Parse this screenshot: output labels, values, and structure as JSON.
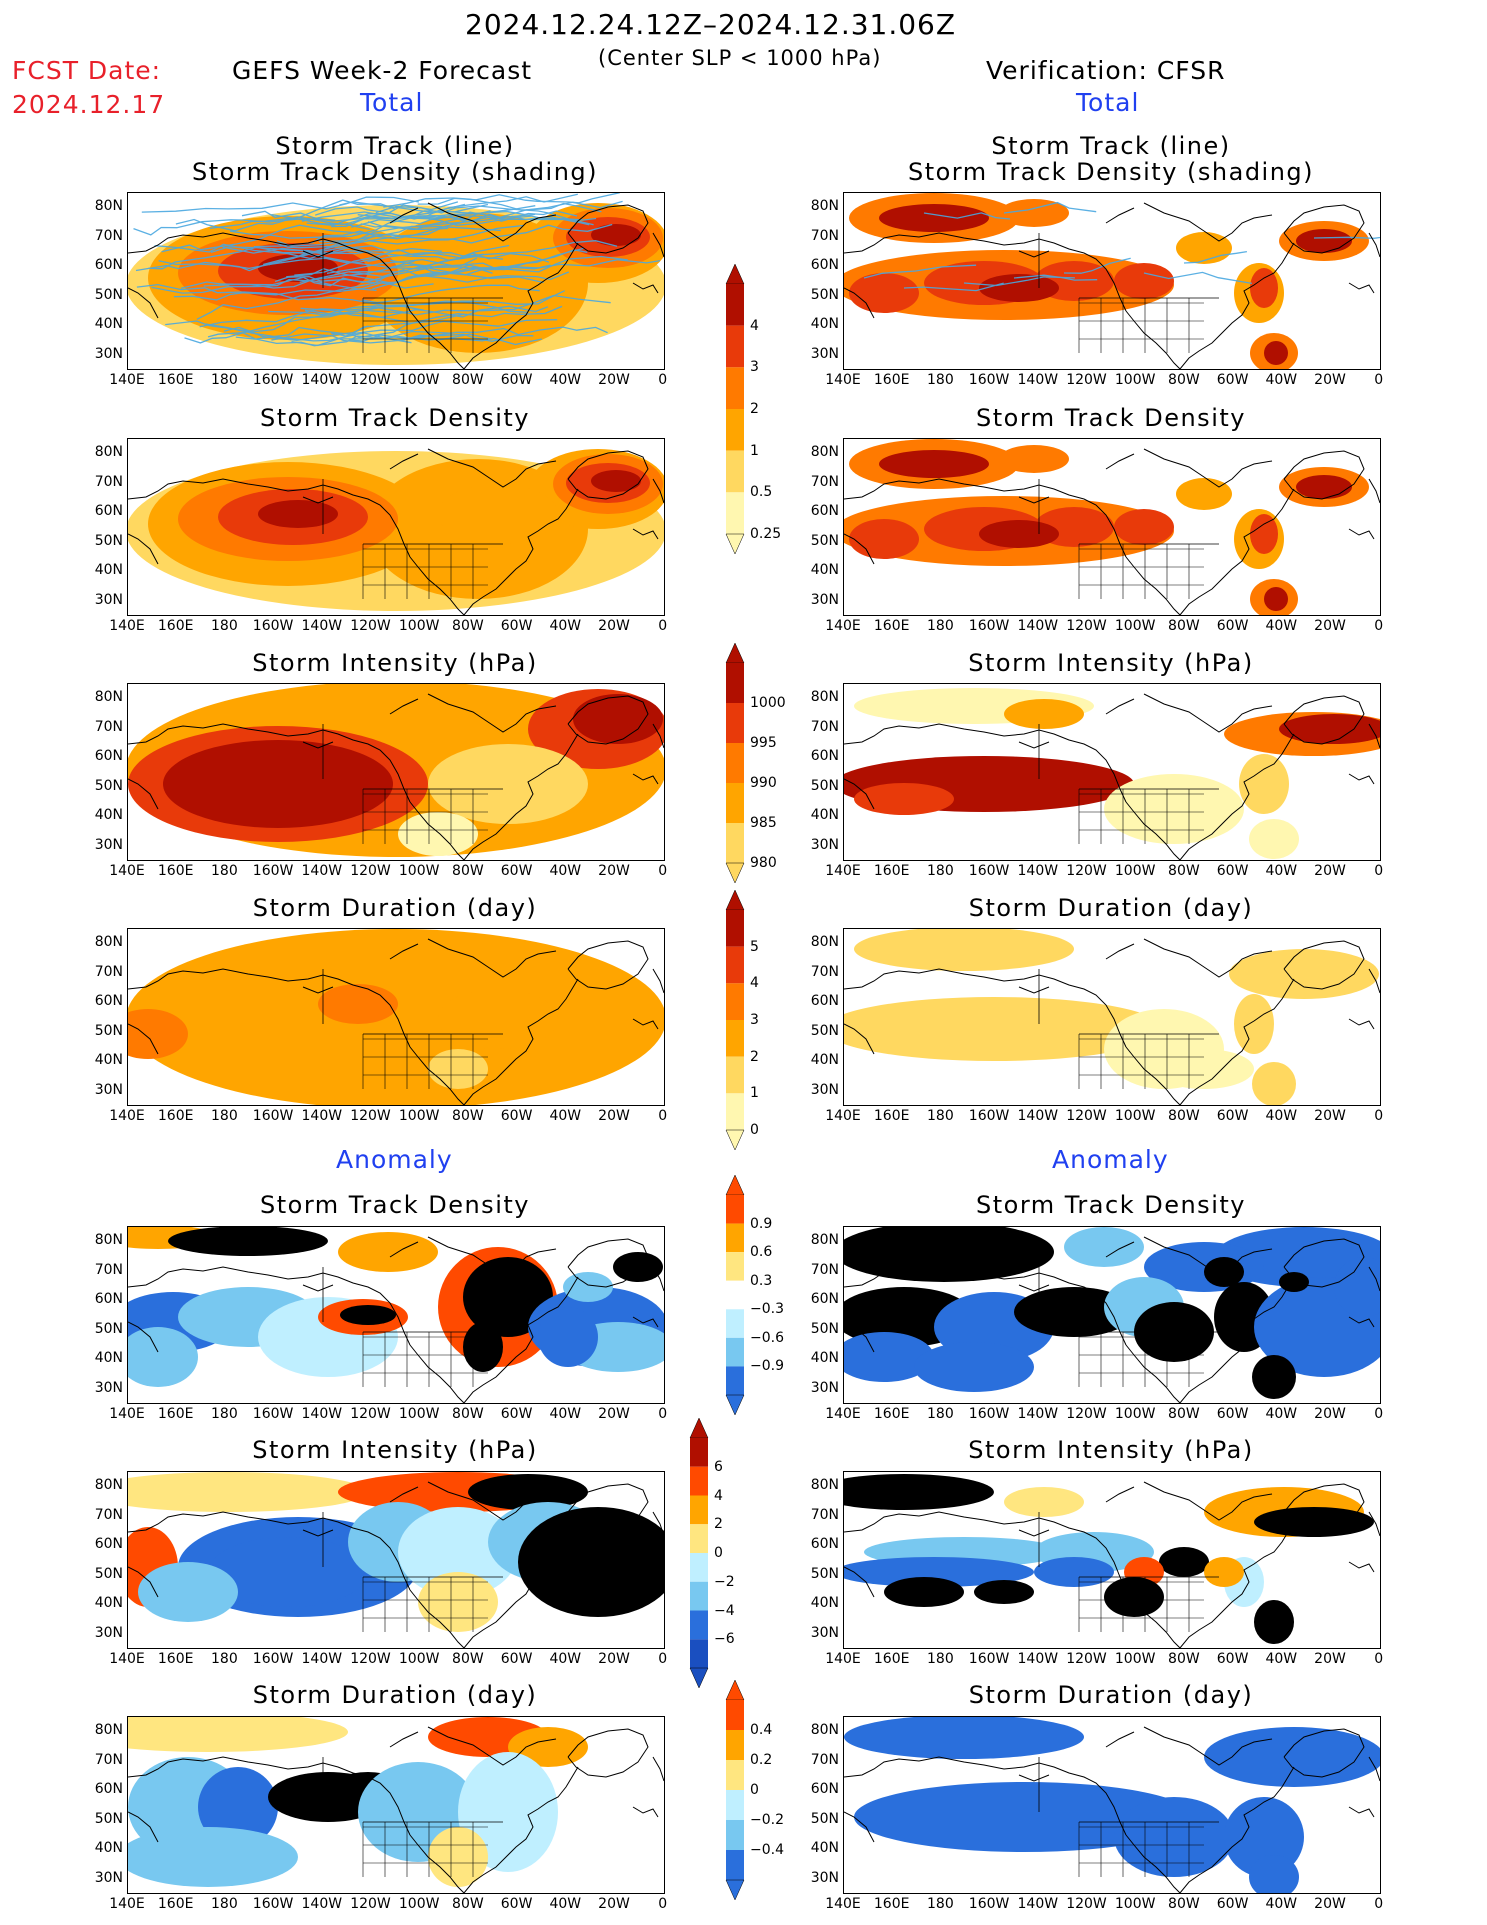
{
  "header": {
    "period": "2024.12.24.12Z–2024.12.31.06Z",
    "subtitle": "(Center SLP < 1000 hPa)",
    "fcst_label": "FCST Date:",
    "fcst_date": "2024.12.17",
    "left_title": "GEFS Week-2 Forecast",
    "right_title": "Verification: CFSR",
    "total_label": "Total",
    "anomaly_label": "Anomaly"
  },
  "panel_titles": {
    "track_line": "Storm Track (line)",
    "track_density_shading": "Storm Track Density (shading)",
    "track_density": "Storm Track Density",
    "intensity": "Storm Intensity (hPa)",
    "duration": "Storm Duration (day)"
  },
  "axes": {
    "lat_labels": [
      "80N",
      "70N",
      "60N",
      "50N",
      "40N",
      "30N"
    ],
    "lon_labels": [
      "140E",
      "160E",
      "180",
      "160W",
      "140W",
      "120W",
      "100W",
      "80W",
      "60W",
      "40W",
      "20W",
      "0"
    ]
  },
  "colorbars": {
    "density_total": [
      "0.25",
      "0.5",
      "1",
      "2",
      "3",
      "4"
    ],
    "intensity_total": [
      "1000",
      "995",
      "990",
      "985",
      "980"
    ],
    "duration_total": [
      "0",
      "1",
      "2",
      "3",
      "4",
      "5"
    ],
    "density_anom": [
      "0.9",
      "0.6",
      "0.3",
      "−0.3",
      "−0.6",
      "−0.9"
    ],
    "intensity_anom": [
      "6",
      "4",
      "2",
      "0",
      "−2",
      "−4",
      "−6"
    ],
    "duration_anom": [
      "0.4",
      "0.2",
      "0",
      "−0.2",
      "−0.4"
    ]
  },
  "colors": {
    "total_scale": [
      "#fff7b0",
      "#ffd860",
      "#ffa500",
      "#ff7a00",
      "#e83a0a",
      "#b00f00"
    ],
    "anom_pos": [
      "#ffe680",
      "#ffa500",
      "#ff4a00"
    ],
    "anom_neg": [
      "#bfefff",
      "#78c8f0",
      "#2a6fdc"
    ],
    "track_line": "#4aa8e0"
  }
}
